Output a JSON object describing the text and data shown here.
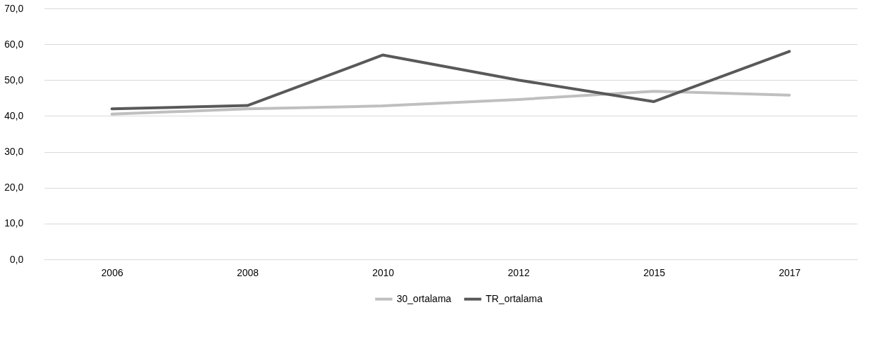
{
  "chart_data": {
    "type": "line",
    "categories": [
      "2006",
      "2008",
      "2010",
      "2012",
      "2015",
      "2017"
    ],
    "series": [
      {
        "name": "30_ortalama",
        "color": "#bfbfbf",
        "values": [
          40.5,
          42.0,
          42.8,
          44.6,
          46.9,
          45.8
        ]
      },
      {
        "name": "TR_ortalama",
        "color": "#595959",
        "values": [
          42.0,
          42.9,
          57.0,
          50.0,
          44.0,
          58.0
        ]
      }
    ],
    "ylim": [
      0,
      70
    ],
    "yticks": [
      {
        "value": 0,
        "label": "0,0"
      },
      {
        "value": 10,
        "label": "10,0"
      },
      {
        "value": 20,
        "label": "20,0"
      },
      {
        "value": 30,
        "label": "30,0"
      },
      {
        "value": 40,
        "label": "40,0"
      },
      {
        "value": 50,
        "label": "50,0"
      },
      {
        "value": 60,
        "label": "60,0"
      },
      {
        "value": 70,
        "label": "70,0"
      }
    ],
    "grid": "y",
    "legend": "bottom",
    "marker": "none",
    "line_style": "solid"
  }
}
